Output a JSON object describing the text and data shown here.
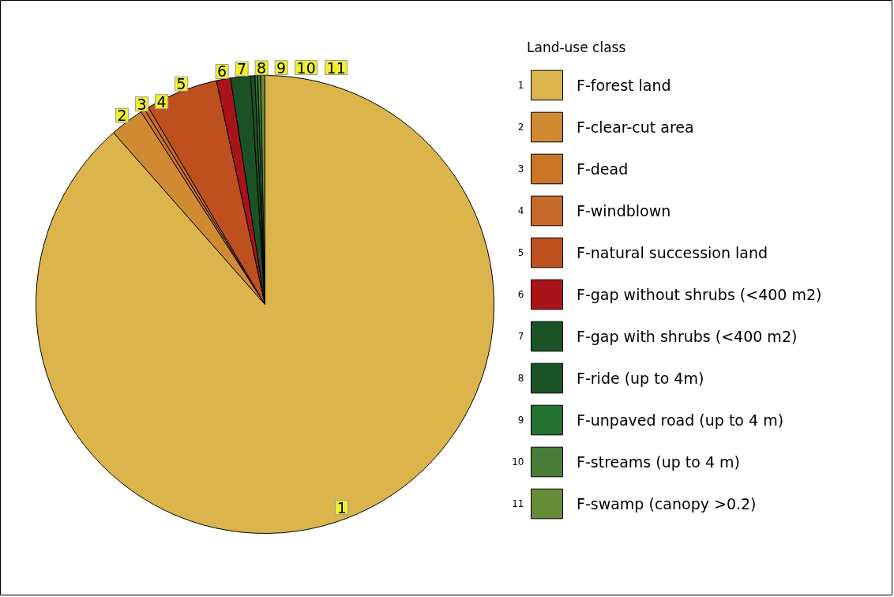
{
  "chart_data": {
    "type": "pie",
    "legend_title": "Land-use class",
    "legend": "right",
    "categories": [
      "F-forest land",
      "F-clear-cut area",
      "F-dead",
      "F-windblown",
      "F-natural succession land",
      "F-gap without shrubs (<400 m2)",
      "F-gap with shrubs (<400 m2)",
      "F-ride (up to 4m)",
      "F-unpaved road (up to 4 m)",
      "F-streams (up to 4 m)",
      "F-swamp (canopy >0.2)"
    ],
    "values": [
      88.5,
      2.4,
      0.3,
      0.3,
      5.1,
      1.0,
      1.4,
      0.3,
      0.2,
      0.2,
      0.3
    ],
    "annotations": [
      "1",
      "2",
      "3",
      "4",
      "5",
      "6",
      "7",
      "8",
      "9",
      "10",
      "11"
    ],
    "colors": [
      "#dbb54c",
      "#d08a32",
      "#c97426",
      "#c56a2a",
      "#be5020",
      "#a8141a",
      "#1a5226",
      "#195326",
      "#247232",
      "#4a7d38",
      "#668c3a"
    ]
  }
}
